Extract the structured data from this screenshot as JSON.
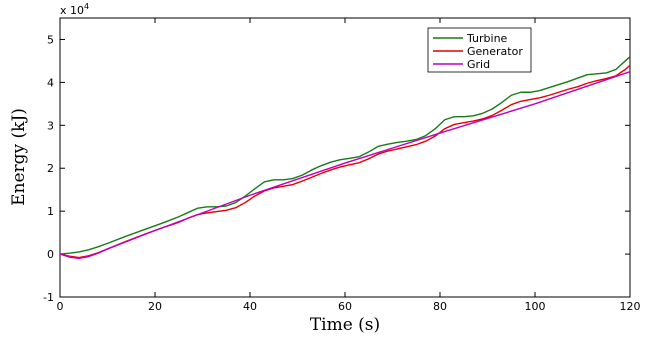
{
  "chart_data": {
    "type": "line",
    "title": "",
    "xlabel": "Time (s)",
    "ylabel": "Energy (kJ)",
    "y_exponent_label": "x 10",
    "y_exponent_power": "4",
    "xlim": [
      0,
      120
    ],
    "ylim": [
      -1,
      5.5
    ],
    "xticks": [
      0,
      20,
      40,
      60,
      80,
      100,
      120
    ],
    "yticks": [
      -1,
      0,
      1,
      2,
      3,
      4,
      5
    ],
    "grid": false,
    "legend_position": "top-right",
    "series": [
      {
        "name": "Turbine",
        "color": "#1a7a1a",
        "x": [
          0,
          2,
          4,
          6,
          8,
          10,
          14,
          18,
          22,
          25,
          27,
          29,
          31,
          33,
          35,
          37,
          39,
          41,
          43,
          45,
          47,
          49,
          51,
          53,
          55,
          57,
          59,
          61,
          63,
          65,
          67,
          69,
          71,
          73,
          75,
          77,
          79,
          81,
          83,
          85,
          87,
          89,
          91,
          93,
          95,
          97,
          99,
          101,
          103,
          105,
          107,
          109,
          111,
          113,
          115,
          117,
          119,
          120
        ],
        "y": [
          0,
          0.02,
          0.05,
          0.1,
          0.17,
          0.25,
          0.42,
          0.58,
          0.74,
          0.87,
          0.97,
          1.07,
          1.1,
          1.1,
          1.12,
          1.2,
          1.35,
          1.52,
          1.68,
          1.73,
          1.73,
          1.76,
          1.84,
          1.96,
          2.06,
          2.14,
          2.2,
          2.23,
          2.27,
          2.38,
          2.51,
          2.56,
          2.6,
          2.63,
          2.67,
          2.76,
          2.92,
          3.13,
          3.2,
          3.2,
          3.22,
          3.28,
          3.38,
          3.53,
          3.7,
          3.77,
          3.77,
          3.81,
          3.88,
          3.95,
          4.02,
          4.1,
          4.18,
          4.2,
          4.22,
          4.3,
          4.5,
          4.6
        ]
      },
      {
        "name": "Generator",
        "color": "#e60000",
        "x": [
          0,
          2,
          4,
          6,
          8,
          10,
          14,
          18,
          22,
          25,
          27,
          29,
          31,
          33,
          35,
          37,
          39,
          41,
          43,
          45,
          47,
          49,
          51,
          53,
          55,
          57,
          59,
          61,
          63,
          65,
          67,
          69,
          71,
          73,
          75,
          77,
          79,
          81,
          83,
          85,
          87,
          89,
          91,
          93,
          95,
          97,
          99,
          101,
          103,
          105,
          107,
          109,
          111,
          113,
          115,
          117,
          119,
          120
        ],
        "y": [
          0,
          -0.05,
          -0.08,
          -0.04,
          0.03,
          0.12,
          0.3,
          0.47,
          0.63,
          0.74,
          0.84,
          0.92,
          0.96,
          0.99,
          1.02,
          1.08,
          1.2,
          1.35,
          1.47,
          1.54,
          1.58,
          1.62,
          1.7,
          1.79,
          1.88,
          1.96,
          2.03,
          2.08,
          2.13,
          2.22,
          2.33,
          2.4,
          2.45,
          2.5,
          2.55,
          2.63,
          2.75,
          2.92,
          3.02,
          3.06,
          3.1,
          3.15,
          3.23,
          3.35,
          3.48,
          3.56,
          3.6,
          3.64,
          3.7,
          3.77,
          3.84,
          3.9,
          3.98,
          4.04,
          4.09,
          4.15,
          4.3,
          4.4
        ]
      },
      {
        "name": "Grid",
        "color": "#bf00bf",
        "x": [
          0,
          2,
          4,
          6,
          8,
          10,
          20,
          40,
          60,
          80,
          100,
          120
        ],
        "y": [
          0,
          -0.07,
          -0.1,
          -0.06,
          0.02,
          0.12,
          0.55,
          1.37,
          2.12,
          2.82,
          3.5,
          4.25
        ]
      }
    ]
  }
}
